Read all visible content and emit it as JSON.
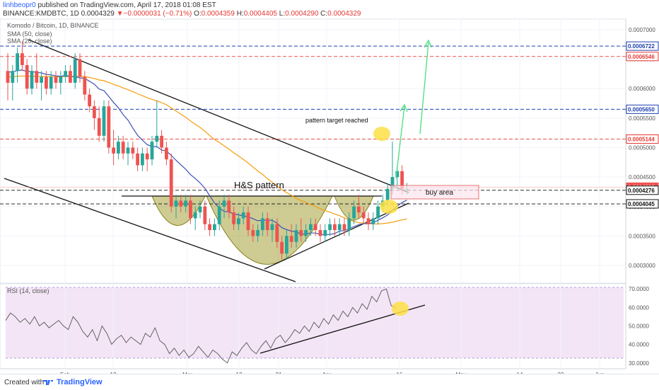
{
  "header": {
    "author": "linhbeopr0",
    "published": "published on TradingView.com, April 17, 2018 01:08 EST",
    "symbol": "BINANCE:KMDBTC, 1D",
    "price": "0.0004329",
    "change_arrow": "▼",
    "change": "−0.0000031 (−0.71%)",
    "ohlc": {
      "open_label": "O:",
      "open": "0.0004359",
      "high_label": "H:",
      "high": "0.0004405",
      "low_label": "L:",
      "low": "0.0004290",
      "close_label": "C:",
      "close": "0.0004329"
    }
  },
  "legend": {
    "title": "Komodo / Bitcoin, 1D, BINANCE",
    "sma50": "SMA (50, close)",
    "sma20": "SMA (20, close)",
    "rsi": "RSI (14, close)"
  },
  "footer": {
    "created": "Created with",
    "brand": "TradingView"
  },
  "colors": {
    "up": "#26a69a",
    "down": "#ef5350",
    "sma50": "#f59e0b",
    "sma20": "#3f51b5",
    "hs_fill": "#a5a03a",
    "rsi_bg": "#f3e5f5",
    "label_blue": "#1e40af",
    "label_red": "#e53935",
    "green_arrow": "#4ade80",
    "highlight": "#fde047"
  },
  "chart_data": [
    {
      "type": "candlestick",
      "title": "Komodo / Bitcoin, 1D, BINANCE",
      "x_tick_labels": [
        "Feb",
        "12",
        "Mar",
        "12",
        "21",
        "Apr",
        "16",
        "May",
        "14",
        "23",
        "Jun"
      ],
      "y_tick_labels": [
        "0.0007000",
        "0.0006500",
        "0.0006000",
        "0.0005500",
        "0.0005000",
        "0.0004500",
        "0.0004000",
        "0.0003500",
        "0.0003000"
      ],
      "ylim": [
        0.00027,
        0.000718
      ],
      "price_labels": [
        {
          "text": "0.0006722",
          "value": 0.0006722,
          "style": "blue"
        },
        {
          "text": "0.0006546",
          "value": 0.0006546,
          "style": "red"
        },
        {
          "text": "0.0005650",
          "value": 0.000565,
          "style": "blue"
        },
        {
          "text": "0.0005144",
          "value": 0.0005144,
          "style": "red"
        },
        {
          "text": "0.0004329",
          "value": 0.0004329,
          "style": "red_fill"
        },
        {
          "text": "0.0004276",
          "value": 0.0004276,
          "style": "black"
        },
        {
          "text": "0.0004045",
          "value": 0.0004045,
          "style": "black"
        }
      ],
      "horizontal_lines": [
        {
          "value": 0.0006722,
          "color": "blue"
        },
        {
          "value": 0.0006546,
          "color": "red"
        },
        {
          "value": 0.000565,
          "color": "blue"
        },
        {
          "value": 0.0005144,
          "color": "red"
        },
        {
          "value": 0.0004276,
          "color": "black"
        },
        {
          "value": 0.0004045,
          "color": "black"
        }
      ],
      "annotations": [
        "H&S pattern",
        "pattern target reached",
        "buy area"
      ],
      "candles_ohlc": [
        [
          0.00063,
          0.00066,
          0.00058,
          0.00061
        ],
        [
          0.00061,
          0.00064,
          0.00058,
          0.00063
        ],
        [
          0.00063,
          0.00067,
          0.00061,
          0.00066
        ],
        [
          0.00066,
          0.00068,
          0.00063,
          0.00064
        ],
        [
          0.00064,
          0.00065,
          0.00059,
          0.0006
        ],
        [
          0.0006,
          0.00064,
          0.00059,
          0.00063
        ],
        [
          0.00063,
          0.00066,
          0.0006,
          0.00061
        ],
        [
          0.00061,
          0.00063,
          0.00058,
          0.00062
        ],
        [
          0.00062,
          0.00063,
          0.00059,
          0.0006
        ],
        [
          0.0006,
          0.00063,
          0.00059,
          0.00062
        ],
        [
          0.00062,
          0.00063,
          0.0006,
          0.00061
        ],
        [
          0.00061,
          0.00063,
          0.00059,
          0.00062
        ],
        [
          0.00062,
          0.00064,
          0.00061,
          0.00063
        ],
        [
          0.00063,
          0.00064,
          0.00061,
          0.00061
        ],
        [
          0.00061,
          0.00066,
          0.0006,
          0.00065
        ],
        [
          0.00065,
          0.00066,
          0.00061,
          0.00062
        ],
        [
          0.00062,
          0.00063,
          0.00058,
          0.00059
        ],
        [
          0.00059,
          0.0006,
          0.00056,
          0.00057
        ],
        [
          0.00057,
          0.00058,
          0.00053,
          0.00055
        ],
        [
          0.00055,
          0.00057,
          0.00051,
          0.00052
        ],
        [
          0.00052,
          0.00058,
          0.00051,
          0.00057
        ],
        [
          0.00057,
          0.00058,
          0.00049,
          0.0005
        ],
        [
          0.0005,
          0.00053,
          0.00047,
          0.00049
        ],
        [
          0.00049,
          0.00052,
          0.00048,
          0.00051
        ],
        [
          0.00051,
          0.00052,
          0.00048,
          0.00049
        ],
        [
          0.00049,
          0.00051,
          0.00047,
          0.0005
        ],
        [
          0.0005,
          0.00051,
          0.00048,
          0.00049
        ],
        [
          0.00049,
          0.0005,
          0.00046,
          0.00047
        ],
        [
          0.00047,
          0.0005,
          0.00046,
          0.00049
        ],
        [
          0.00049,
          0.0005,
          0.00046,
          0.00048
        ],
        [
          0.00048,
          0.00052,
          0.00047,
          0.00051
        ],
        [
          0.00051,
          0.00058,
          0.0005,
          0.00052
        ],
        [
          0.00052,
          0.00053,
          0.00049,
          0.0005
        ],
        [
          0.0005,
          0.00051,
          0.00047,
          0.00048
        ],
        [
          0.00048,
          0.00049,
          0.00039,
          0.0004
        ],
        [
          0.0004,
          0.00042,
          0.00038,
          0.00041
        ],
        [
          0.00041,
          0.00042,
          0.00039,
          0.0004
        ],
        [
          0.0004,
          0.00042,
          0.00039,
          0.00041
        ],
        [
          0.00041,
          0.00042,
          0.00037,
          0.00038
        ],
        [
          0.00038,
          0.0004,
          0.00036,
          0.00039
        ],
        [
          0.00039,
          0.00041,
          0.00038,
          0.0004
        ],
        [
          0.0004,
          0.00041,
          0.00036,
          0.00037
        ],
        [
          0.00037,
          0.00038,
          0.00035,
          0.00036
        ],
        [
          0.00036,
          0.00038,
          0.00035,
          0.00037
        ],
        [
          0.00037,
          0.00041,
          0.00036,
          0.0004
        ],
        [
          0.0004,
          0.00042,
          0.00038,
          0.00041
        ],
        [
          0.00041,
          0.00042,
          0.00038,
          0.00039
        ],
        [
          0.00039,
          0.0004,
          0.00036,
          0.00037
        ],
        [
          0.00037,
          0.00039,
          0.00036,
          0.00038
        ],
        [
          0.00038,
          0.0004,
          0.00037,
          0.00039
        ],
        [
          0.00039,
          0.0004,
          0.00035,
          0.00036
        ],
        [
          0.00036,
          0.00037,
          0.00034,
          0.00035
        ],
        [
          0.00035,
          0.00037,
          0.00034,
          0.00036
        ],
        [
          0.00036,
          0.00039,
          0.00035,
          0.00038
        ],
        [
          0.00038,
          0.00039,
          0.00035,
          0.00036
        ],
        [
          0.00036,
          0.00038,
          0.00034,
          0.00037
        ],
        [
          0.00037,
          0.00038,
          0.00033,
          0.00034
        ],
        [
          0.00034,
          0.00035,
          0.00031,
          0.00032
        ],
        [
          0.00032,
          0.00036,
          0.00031,
          0.00035
        ],
        [
          0.00035,
          0.00037,
          0.00033,
          0.00034
        ],
        [
          0.00034,
          0.00037,
          0.00033,
          0.00036
        ],
        [
          0.00036,
          0.00038,
          0.00034,
          0.00035
        ],
        [
          0.00035,
          0.00037,
          0.00034,
          0.00036
        ],
        [
          0.00036,
          0.00038,
          0.00035,
          0.00037
        ],
        [
          0.00037,
          0.00038,
          0.00035,
          0.00036
        ],
        [
          0.00036,
          0.00037,
          0.00034,
          0.00035
        ],
        [
          0.00035,
          0.00037,
          0.00034,
          0.00036
        ],
        [
          0.00036,
          0.00038,
          0.00035,
          0.00037
        ],
        [
          0.00037,
          0.00038,
          0.00035,
          0.00036
        ],
        [
          0.00036,
          0.00038,
          0.00035,
          0.00037
        ],
        [
          0.00037,
          0.00038,
          0.00035,
          0.00036
        ],
        [
          0.00036,
          0.00039,
          0.00035,
          0.00038
        ],
        [
          0.00038,
          0.00041,
          0.00037,
          0.0004
        ],
        [
          0.0004,
          0.00042,
          0.00038,
          0.00039
        ],
        [
          0.00039,
          0.0004,
          0.00037,
          0.00038
        ],
        [
          0.00038,
          0.00039,
          0.00036,
          0.00037
        ],
        [
          0.00037,
          0.00039,
          0.00036,
          0.00038
        ],
        [
          0.00038,
          0.00041,
          0.00037,
          0.0004
        ],
        [
          0.0004,
          0.00042,
          0.00039,
          0.00041
        ],
        [
          0.00041,
          0.00044,
          0.0004,
          0.00043
        ],
        [
          0.00043,
          0.00051,
          0.00042,
          0.00045
        ],
        [
          0.00045,
          0.00047,
          0.00043,
          0.00046
        ],
        [
          0.00046,
          0.00047,
          0.00042,
          0.00043
        ],
        [
          0.00043,
          0.00044,
          0.00042,
          0.00043
        ]
      ]
    },
    {
      "type": "line",
      "title": "RSI (14, close)",
      "y_tick_labels": [
        "70.0000",
        "60.0000",
        "50.0000",
        "40.0000",
        "30.0000"
      ],
      "ylim": [
        28,
        72
      ],
      "values": [
        53,
        57,
        55,
        52,
        54,
        51,
        55,
        50,
        52,
        49,
        51,
        53,
        50,
        48,
        55,
        52,
        47,
        44,
        48,
        42,
        50,
        46,
        40,
        43,
        45,
        41,
        44,
        42,
        40,
        46,
        44,
        49,
        42,
        40,
        35,
        38,
        34,
        37,
        33,
        35,
        39,
        36,
        33,
        37,
        35,
        32,
        30,
        36,
        34,
        38,
        41,
        37,
        35,
        39,
        42,
        38,
        43,
        45,
        41,
        44,
        48,
        46,
        50,
        47,
        52,
        49,
        54,
        51,
        56,
        53,
        58,
        55,
        60,
        57,
        62,
        59,
        66,
        63,
        69,
        70,
        61,
        60
      ]
    }
  ]
}
